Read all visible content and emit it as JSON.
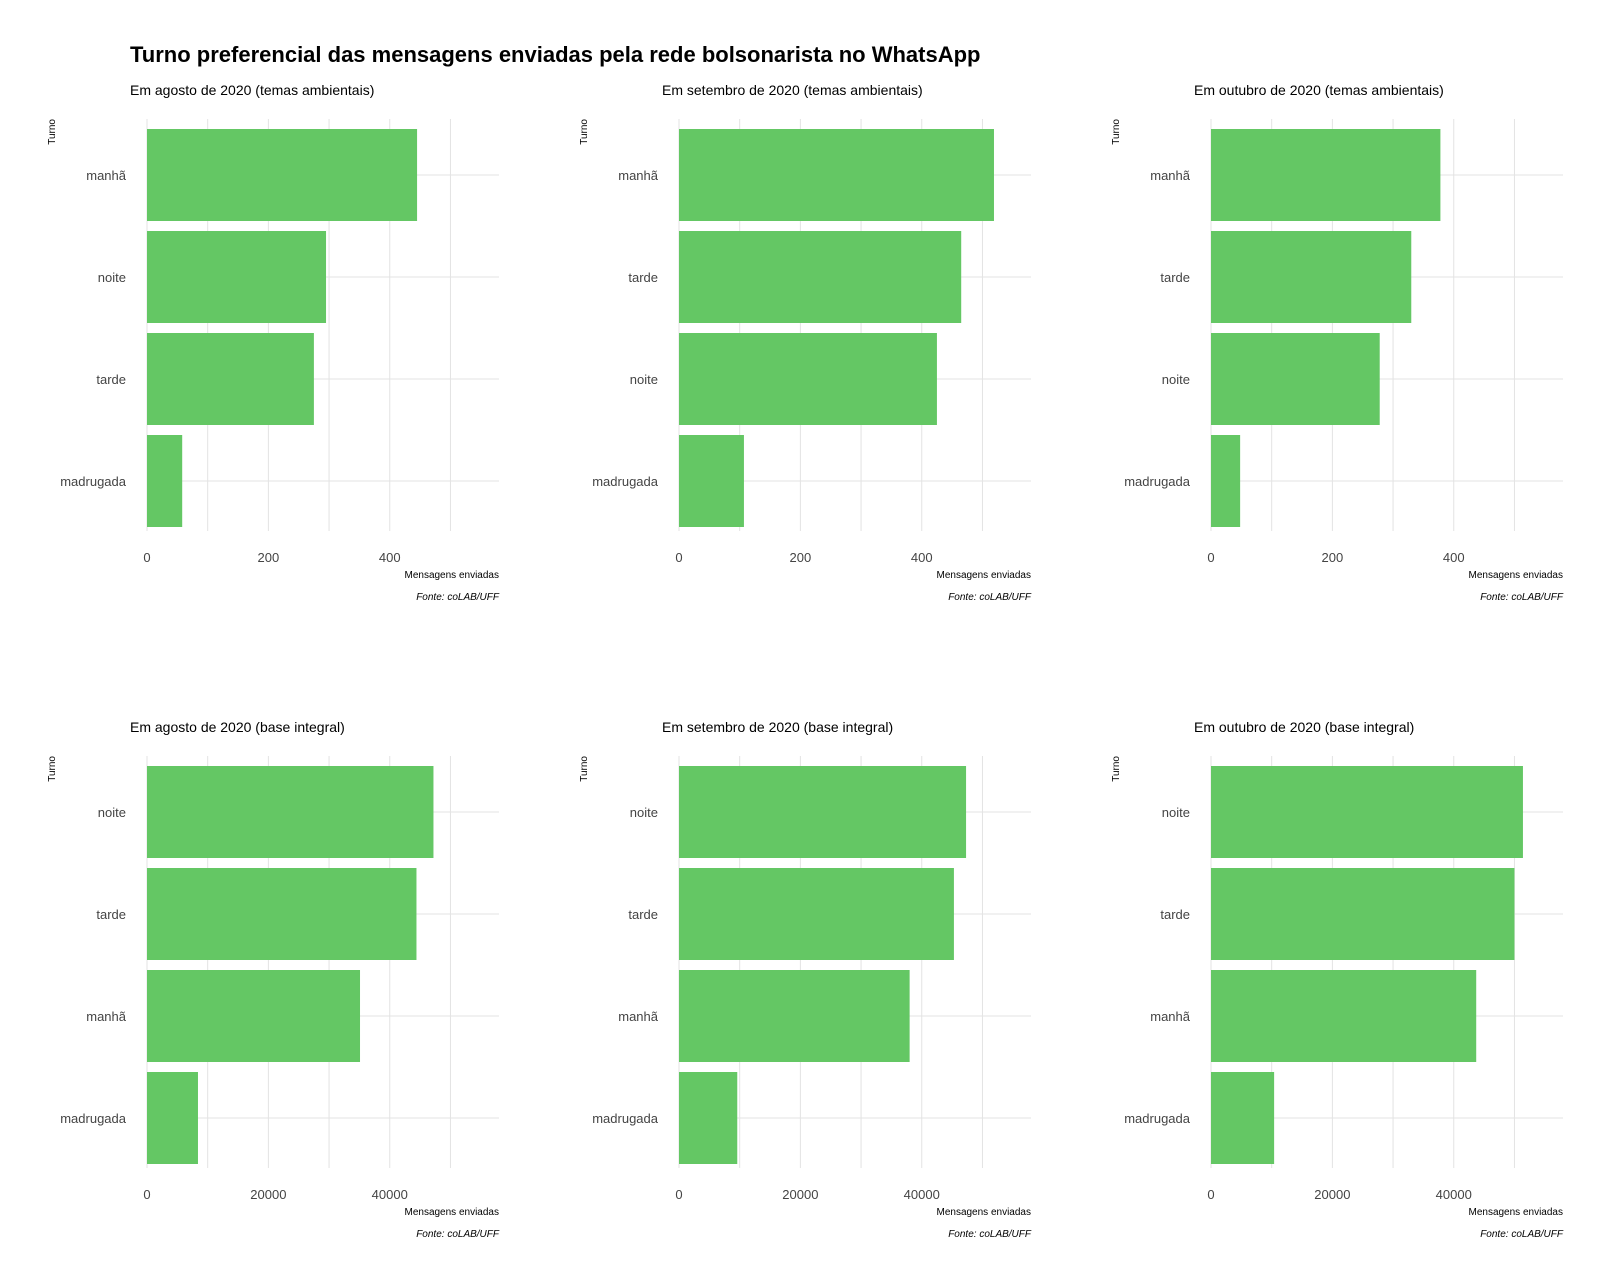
{
  "title": "Turno preferencial das mensagens enviadas pela rede bolsonarista no WhatsApp",
  "colors": {
    "bar": "#64c764",
    "grid": "#e3e3e3"
  },
  "chart_data": [
    {
      "type": "bar",
      "orientation": "horizontal",
      "subtitle": "Em agosto de 2020 (temas ambientais)",
      "xlabel": "Mensagens enviadas",
      "ylabel": "Turno",
      "caption": "Fonte: coLAB/UFF",
      "categories": [
        "manhã",
        "noite",
        "tarde",
        "madrugada"
      ],
      "values": [
        445,
        295,
        275,
        58
      ],
      "xlim": [
        0,
        580
      ],
      "xticks": [
        0,
        200,
        400
      ],
      "grid": true
    },
    {
      "type": "bar",
      "orientation": "horizontal",
      "subtitle": "Em setembro de 2020 (temas ambientais)",
      "xlabel": "Mensagens enviadas",
      "ylabel": "Turno",
      "caption": "Fonte: coLAB/UFF",
      "categories": [
        "manhã",
        "tarde",
        "noite",
        "madrugada"
      ],
      "values": [
        519,
        465,
        425,
        107
      ],
      "xlim": [
        0,
        580
      ],
      "xticks": [
        0,
        200,
        400
      ],
      "grid": true
    },
    {
      "type": "bar",
      "orientation": "horizontal",
      "subtitle": "Em outubro de 2020 (temas ambientais)",
      "xlabel": "Mensagens enviadas",
      "ylabel": "Turno",
      "caption": "Fonte: coLAB/UFF",
      "categories": [
        "manhã",
        "tarde",
        "noite",
        "madrugada"
      ],
      "values": [
        378,
        330,
        278,
        48
      ],
      "xlim": [
        0,
        580
      ],
      "xticks": [
        0,
        200,
        400
      ],
      "grid": true
    },
    {
      "type": "bar",
      "orientation": "horizontal",
      "subtitle": "Em agosto de 2020 (base integral)",
      "xlabel": "Mensagens enviadas",
      "ylabel": "Turno",
      "caption": "Fonte: coLAB/UFF",
      "categories": [
        "noite",
        "tarde",
        "manhã",
        "madrugada"
      ],
      "values": [
        47200,
        44400,
        35100,
        8400
      ],
      "xlim": [
        0,
        58000
      ],
      "xticks": [
        0,
        20000,
        40000
      ],
      "grid": true
    },
    {
      "type": "bar",
      "orientation": "horizontal",
      "subtitle": "Em setembro de 2020 (base integral)",
      "xlabel": "Mensagens enviadas",
      "ylabel": "Turno",
      "caption": "Fonte: coLAB/UFF",
      "categories": [
        "noite",
        "tarde",
        "manhã",
        "madrugada"
      ],
      "values": [
        47300,
        45300,
        38000,
        9600
      ],
      "xlim": [
        0,
        58000
      ],
      "xticks": [
        0,
        20000,
        40000
      ],
      "grid": true
    },
    {
      "type": "bar",
      "orientation": "horizontal",
      "subtitle": "Em outubro de 2020 (base integral)",
      "xlabel": "Mensagens enviadas",
      "ylabel": "Turno",
      "caption": "Fonte: coLAB/UFF",
      "categories": [
        "noite",
        "tarde",
        "manhã",
        "madrugada"
      ],
      "values": [
        51400,
        50000,
        43700,
        10400
      ],
      "xlim": [
        0,
        58000
      ],
      "xticks": [
        0,
        20000,
        40000
      ],
      "grid": true
    }
  ]
}
